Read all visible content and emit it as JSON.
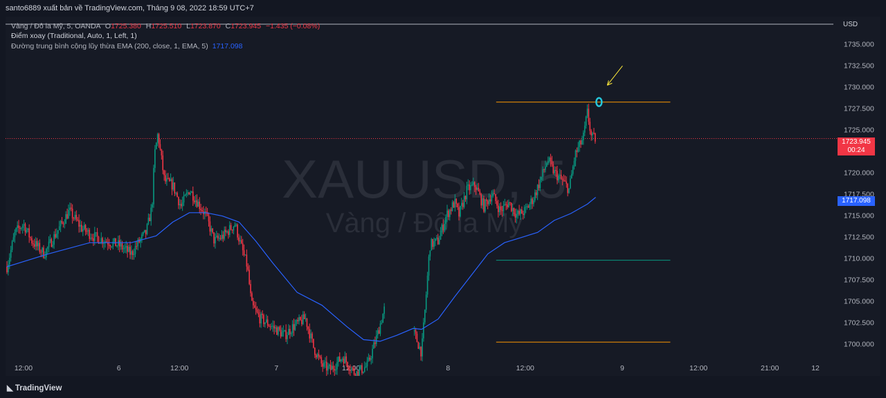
{
  "header": {
    "publish_line": "santo6889 xuất bản về TradingView.com, Tháng 9 08, 2022 18:59 UTC+7"
  },
  "legend": {
    "symbol_line": {
      "name": "Vàng / Đô la Mỹ, 5, OANDA",
      "o_label": "O",
      "o_value": "1725.380",
      "h_label": "H",
      "h_value": "1725.510",
      "l_label": "L",
      "l_value": "1723.870",
      "c_label": "C",
      "c_value": "1723.945",
      "change": "−1.435 (−0.08%)"
    },
    "pivot_line": "Điểm xoay (Traditional, Auto, 1, Left, 1)",
    "ema_line": {
      "name": "Đường trung bình cộng lũy thừa EMA (200, close, 1, EMA, 5)",
      "value": "1717.098"
    }
  },
  "watermark": {
    "symbol": "XAUUSD, 5",
    "description": "Vàng / Đô la Mỹ"
  },
  "price_axis": {
    "currency": "USD",
    "last_price": "1723.945",
    "countdown": "00:24",
    "ema_value": "1717.098",
    "last_price_color": "#f23645",
    "ema_color": "#2962ff"
  },
  "footer": {
    "brand": "TradingView"
  },
  "chart_data": {
    "type": "candlestick",
    "symbol": "XAUUSD",
    "timeframe": "5",
    "y_ticks": [
      1700.0,
      1702.5,
      1705.0,
      1707.5,
      1710.0,
      1712.5,
      1715.0,
      1717.5,
      1720.0,
      1722.5,
      1725.0,
      1727.5,
      1730.0,
      1732.5,
      1735.0
    ],
    "y_tick_labels": [
      "1700.000",
      "1702.500",
      "1705.000",
      "1707.500",
      "1710.000",
      "1712.500",
      "1715.000",
      "1717.500",
      "1720.000",
      "1722.500",
      "1725.000",
      "1727.500",
      "1730.000",
      "1732.500",
      "1735.000"
    ],
    "ylim": [
      1698.2,
      1737.2
    ],
    "x_ticks": [
      {
        "label": "12:00",
        "t": 0.02
      },
      {
        "label": "6",
        "t": 0.135
      },
      {
        "label": "12:00",
        "t": 0.208
      },
      {
        "label": "7",
        "t": 0.325
      },
      {
        "label": "12:00",
        "t": 0.415
      },
      {
        "label": "8",
        "t": 0.532
      },
      {
        "label": "12:00",
        "t": 0.625
      },
      {
        "label": "9",
        "t": 0.742
      },
      {
        "label": "12:00",
        "t": 0.834
      },
      {
        "label": "21:00",
        "t": 0.92
      },
      {
        "label": "12",
        "t": 0.975
      }
    ],
    "price_path": [
      [
        0.0,
        1709.0
      ],
      [
        0.01,
        1713.0
      ],
      [
        0.02,
        1714.0
      ],
      [
        0.03,
        1712.0
      ],
      [
        0.045,
        1710.5
      ],
      [
        0.06,
        1713.0
      ],
      [
        0.075,
        1715.5
      ],
      [
        0.09,
        1713.5
      ],
      [
        0.105,
        1712.5
      ],
      [
        0.12,
        1712.0
      ],
      [
        0.135,
        1711.5
      ],
      [
        0.15,
        1710.5
      ],
      [
        0.16,
        1712.0
      ],
      [
        0.168,
        1713.0
      ],
      [
        0.175,
        1716.0
      ],
      [
        0.178,
        1722.0
      ],
      [
        0.182,
        1724.5
      ],
      [
        0.19,
        1719.0
      ],
      [
        0.2,
        1718.5
      ],
      [
        0.21,
        1716.0
      ],
      [
        0.22,
        1718.0
      ],
      [
        0.23,
        1716.5
      ],
      [
        0.24,
        1715.0
      ],
      [
        0.25,
        1712.0
      ],
      [
        0.26,
        1712.5
      ],
      [
        0.275,
        1714.0
      ],
      [
        0.282,
        1711.5
      ],
      [
        0.29,
        1709.0
      ],
      [
        0.295,
        1704.5
      ],
      [
        0.305,
        1703.0
      ],
      [
        0.32,
        1702.0
      ],
      [
        0.335,
        1701.0
      ],
      [
        0.345,
        1702.0
      ],
      [
        0.36,
        1703.0
      ],
      [
        0.37,
        1699.5
      ],
      [
        0.38,
        1697.5
      ],
      [
        0.39,
        1697.0
      ],
      [
        0.405,
        1698.5
      ],
      [
        0.42,
        1696.5
      ],
      [
        0.435,
        1697.5
      ],
      [
        0.445,
        1700.5
      ],
      [
        0.455,
        1704.0
      ],
      [
        0.465,
        1705.0
      ],
      [
        0.475,
        1703.5
      ],
      [
        0.485,
        1702.5
      ],
      [
        0.492,
        1701.0
      ],
      [
        0.5,
        1699.0
      ],
      [
        0.505,
        1705.0
      ],
      [
        0.51,
        1711.5
      ],
      [
        0.52,
        1712.0
      ],
      [
        0.53,
        1715.0
      ],
      [
        0.54,
        1716.5
      ],
      [
        0.545,
        1715.0
      ],
      [
        0.555,
        1718.0
      ],
      [
        0.565,
        1718.5
      ],
      [
        0.575,
        1716.0
      ],
      [
        0.585,
        1717.5
      ],
      [
        0.595,
        1715.5
      ],
      [
        0.605,
        1716.5
      ],
      [
        0.615,
        1715.0
      ],
      [
        0.625,
        1715.5
      ],
      [
        0.635,
        1717.0
      ],
      [
        0.645,
        1719.5
      ],
      [
        0.652,
        1721.5
      ],
      [
        0.66,
        1720.0
      ],
      [
        0.67,
        1719.0
      ],
      [
        0.678,
        1718.0
      ],
      [
        0.685,
        1722.0
      ],
      [
        0.695,
        1724.0
      ],
      [
        0.7,
        1727.0
      ],
      [
        0.705,
        1724.0
      ],
      [
        0.71,
        1723.945
      ]
    ],
    "ema_path": [
      [
        0.0,
        1709.0
      ],
      [
        0.05,
        1710.5
      ],
      [
        0.1,
        1711.8
      ],
      [
        0.15,
        1711.8
      ],
      [
        0.18,
        1712.6
      ],
      [
        0.2,
        1714.2
      ],
      [
        0.22,
        1715.3
      ],
      [
        0.24,
        1715.3
      ],
      [
        0.26,
        1714.9
      ],
      [
        0.28,
        1714.2
      ],
      [
        0.3,
        1712.0
      ],
      [
        0.32,
        1709.5
      ],
      [
        0.35,
        1706.0
      ],
      [
        0.38,
        1704.5
      ],
      [
        0.41,
        1702.0
      ],
      [
        0.43,
        1700.5
      ],
      [
        0.45,
        1700.3
      ],
      [
        0.47,
        1701.0
      ],
      [
        0.49,
        1701.8
      ],
      [
        0.5,
        1701.7
      ],
      [
        0.52,
        1702.9
      ],
      [
        0.54,
        1705.5
      ],
      [
        0.56,
        1708.0
      ],
      [
        0.58,
        1710.5
      ],
      [
        0.6,
        1711.8
      ],
      [
        0.62,
        1712.4
      ],
      [
        0.64,
        1713.0
      ],
      [
        0.66,
        1714.4
      ],
      [
        0.68,
        1715.2
      ],
      [
        0.7,
        1716.3
      ],
      [
        0.71,
        1717.098
      ]
    ],
    "pivot_segments": [
      {
        "level": 1728.2,
        "x0": 0.59,
        "x1": 0.8,
        "color": "#ff9800"
      },
      {
        "level": 1709.75,
        "x0": 0.59,
        "x1": 0.8,
        "color": "#089981"
      },
      {
        "level": 1700.2,
        "x0": 0.59,
        "x1": 0.8,
        "color": "#ff9800"
      }
    ],
    "last_price_line": 1723.945,
    "annotations": [
      {
        "type": "ellipse",
        "t": 0.714,
        "price": 1728.2,
        "color": "#26c6da"
      },
      {
        "type": "arrow",
        "t": 0.724,
        "price": 1730.0,
        "color": "#ffeb3b"
      }
    ]
  }
}
